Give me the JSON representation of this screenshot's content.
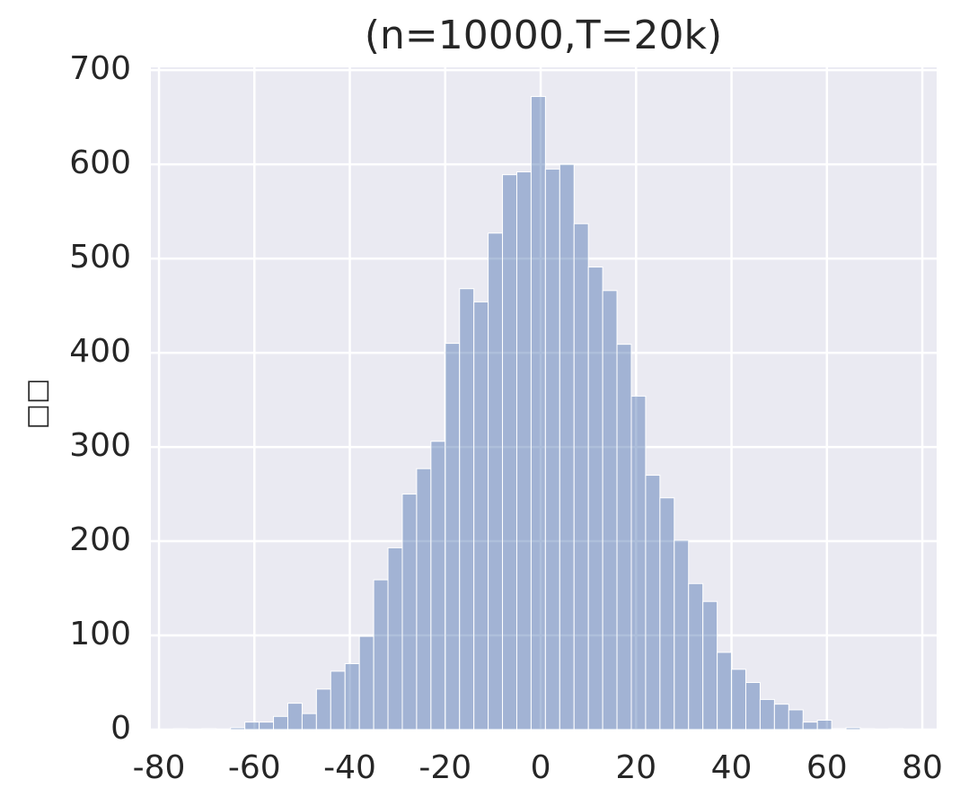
{
  "chart_data": {
    "type": "histogram",
    "title": "(n=10000,T=20k)",
    "y_label": "□□",
    "bins": [
      -77,
      -74,
      -71,
      -68,
      -65,
      -62,
      -59,
      -56,
      -53,
      -50,
      -47,
      -44,
      -41,
      -38,
      -35,
      -32,
      -29,
      -26,
      -23,
      -20,
      -17,
      -14,
      -11,
      -8,
      -5,
      -2,
      1,
      4,
      7,
      10,
      13,
      16,
      19,
      22,
      25,
      28,
      31,
      34,
      37,
      40,
      43,
      46,
      49,
      52,
      55,
      58,
      61,
      64,
      67,
      70,
      73,
      76
    ],
    "values": [
      1,
      0,
      1,
      0,
      2,
      8,
      8,
      14,
      28,
      17,
      43,
      62,
      70,
      99,
      159,
      193,
      250,
      277,
      306,
      410,
      468,
      454,
      527,
      589,
      592,
      672,
      595,
      600,
      537,
      491,
      466,
      409,
      354,
      270,
      246,
      201,
      155,
      136,
      82,
      64,
      50,
      32,
      27,
      21,
      8,
      10,
      1,
      2,
      1,
      0,
      1
    ],
    "color": "#4c72b0",
    "opacity": 0.45,
    "xlim": [
      -81.7,
      83
    ],
    "xticks": [
      -80,
      -60,
      -40,
      -20,
      0,
      20,
      40,
      60,
      80
    ],
    "ylim": [
      0,
      703
    ],
    "yticks": [
      0,
      100,
      200,
      300,
      400,
      500,
      600,
      700
    ],
    "grid": true
  }
}
